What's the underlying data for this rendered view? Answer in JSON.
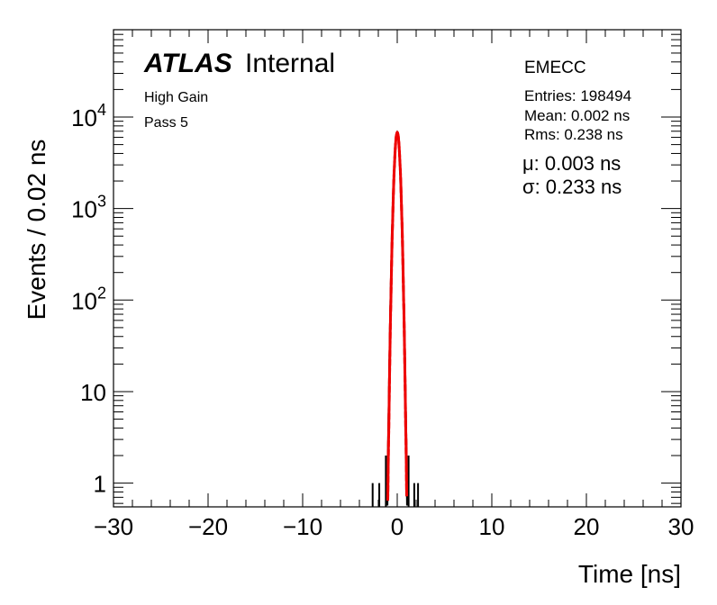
{
  "chart_data": {
    "type": "histogram",
    "xlabel": "Time [ns]",
    "ylabel": "Events / 0.02 ns",
    "xlim": [
      -30,
      30
    ],
    "ylim": [
      0.55,
      90000
    ],
    "y_scale": "log",
    "bin_width": 0.02,
    "x_ticks": [
      "−30",
      "−20",
      "−10",
      "0",
      "10",
      "20",
      "30"
    ],
    "y_ticks": [
      {
        "value": 1,
        "mantissa": "1",
        "exponent": ""
      },
      {
        "value": 10,
        "mantissa": "10",
        "exponent": ""
      },
      {
        "value": 100,
        "mantissa": "10",
        "exponent": "2"
      },
      {
        "value": 1000,
        "mantissa": "10",
        "exponent": "3"
      },
      {
        "value": 10000,
        "mantissa": "10",
        "exponent": "4"
      }
    ],
    "histogram": {
      "color": "#000000",
      "peak_x": 0.0,
      "peak_y": 6800,
      "outlier_bins": [
        {
          "x": -2.6,
          "y": 1
        },
        {
          "x": -1.9,
          "y": 1
        },
        {
          "x": -1.2,
          "y": 2
        },
        {
          "x": 1.2,
          "y": 2
        },
        {
          "x": 1.8,
          "y": 1
        },
        {
          "x": 2.2,
          "y": 1
        }
      ]
    },
    "fit": {
      "function": "gaussian",
      "color": "#ee0000",
      "mu": 0.003,
      "sigma": 0.233,
      "amplitude": 6800
    }
  },
  "labels": {
    "atlas": "ATLAS",
    "internal": "Internal",
    "gain": "High Gain",
    "pass": "Pass 5",
    "region": "EMECC",
    "entries": "Entries: 198494",
    "mean": "Mean: 0.002 ns",
    "rms": "Rms: 0.238 ns",
    "mu_text": "μ: 0.003 ns",
    "sigma_text": "σ: 0.233 ns"
  }
}
